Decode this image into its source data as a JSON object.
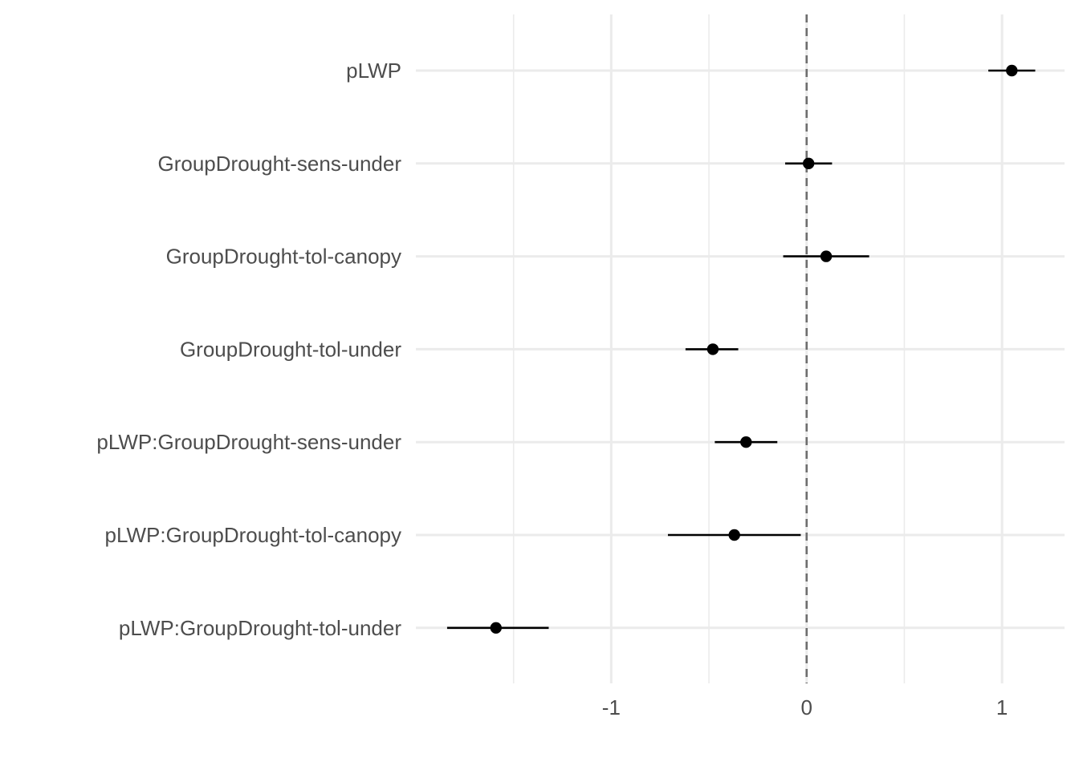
{
  "chart_data": {
    "type": "scatter",
    "title": "",
    "xlabel": "",
    "ylabel": "",
    "xlim": [
      -2.0,
      1.32
    ],
    "x_ticks": [
      {
        "value": -1,
        "label": "-1"
      },
      {
        "value": 0,
        "label": "0"
      },
      {
        "value": 1,
        "label": "1"
      }
    ],
    "x_minor_ticks": [
      -1.5,
      -0.5,
      0.5
    ],
    "reference_line": {
      "x": 0,
      "style": "dashed"
    },
    "grid": true,
    "legend": "none",
    "categories": [
      "pLWP",
      "GroupDrought-sens-under",
      "GroupDrought-tol-canopy",
      "GroupDrought-tol-under",
      "pLWP:GroupDrought-sens-under",
      "pLWP:GroupDrought-tol-canopy",
      "pLWP:GroupDrought-tol-under"
    ],
    "series": [
      {
        "estimates": [
          1.05,
          0.01,
          0.1,
          -0.48,
          -0.31,
          -0.37,
          -1.59
        ],
        "lower": [
          0.93,
          -0.11,
          -0.12,
          -0.62,
          -0.47,
          -0.71,
          -1.84
        ],
        "upper": [
          1.17,
          0.13,
          0.32,
          -0.35,
          -0.15,
          -0.03,
          -1.32
        ]
      }
    ],
    "colors": {
      "point": "#000000",
      "grid": "#ebebeb",
      "reference_line": "#6e6e6e",
      "text": "#4d4d4d"
    }
  }
}
